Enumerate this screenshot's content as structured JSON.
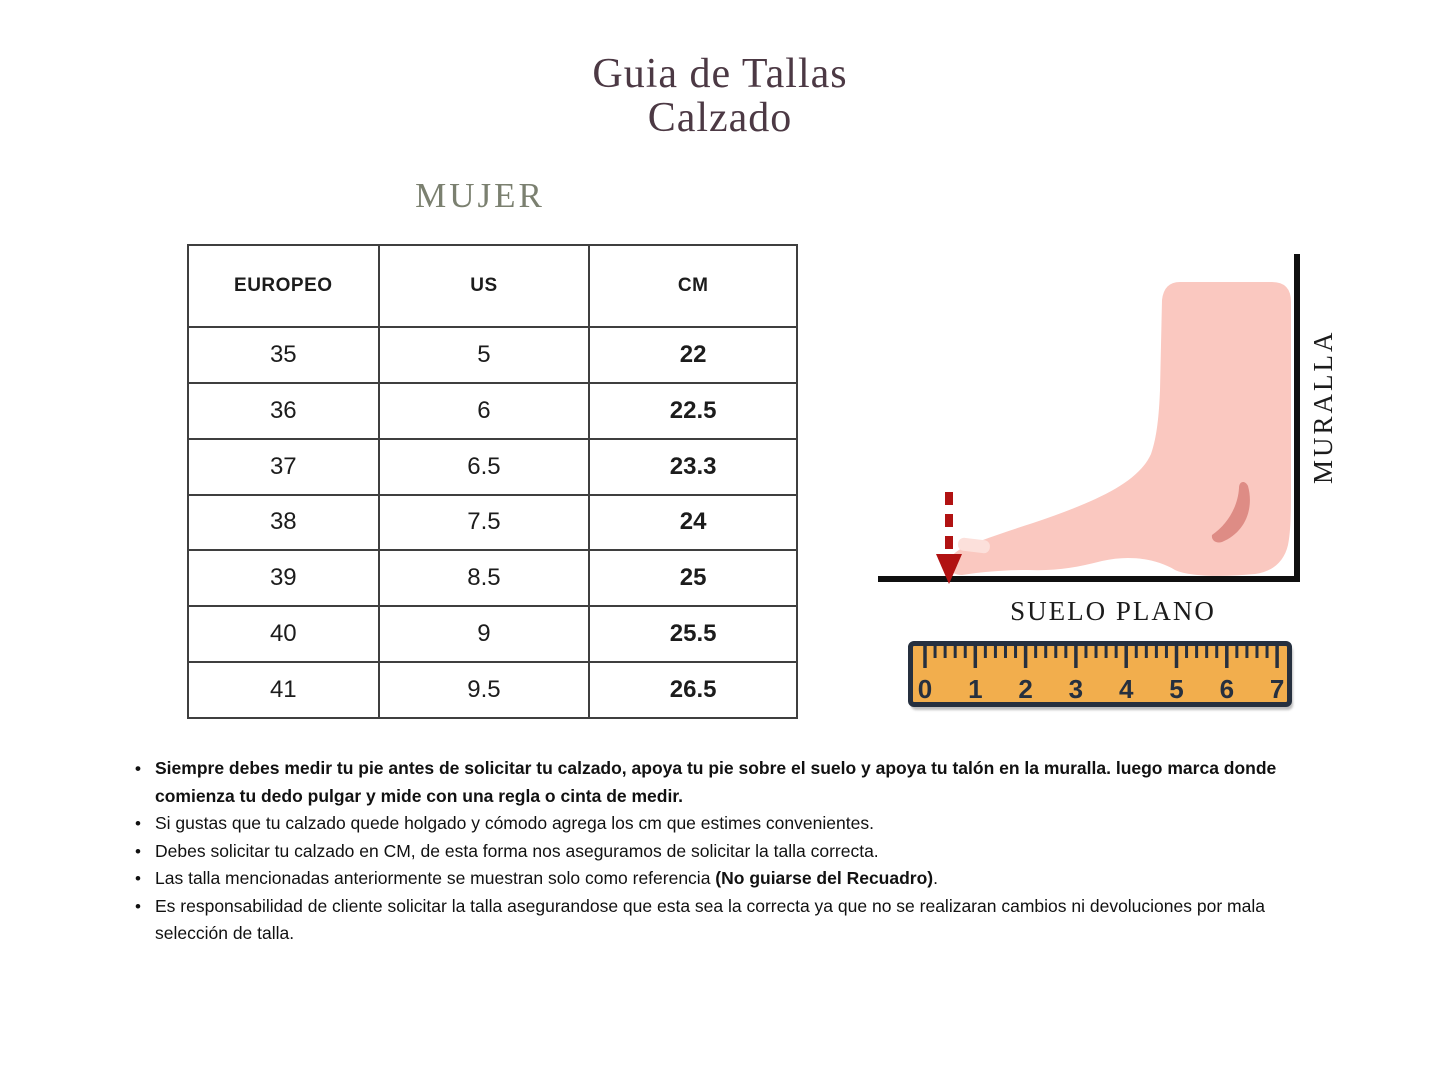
{
  "title": {
    "line1": "Guia de Tallas",
    "line2": "Calzado"
  },
  "section_heading": "MUJER",
  "size_table": {
    "headers": [
      "EUROPEO",
      "US",
      "CM"
    ],
    "rows": [
      [
        "35",
        "5",
        "22"
      ],
      [
        "36",
        "6",
        "22.5"
      ],
      [
        "37",
        "6.5",
        "23.3"
      ],
      [
        "38",
        "7.5",
        "24"
      ],
      [
        "39",
        "8.5",
        "25"
      ],
      [
        "40",
        "9",
        "25.5"
      ],
      [
        "41",
        "9.5",
        "26.5"
      ]
    ]
  },
  "diagram": {
    "wall_label": "MURALLA",
    "floor_label": "SUELO PLANO",
    "ruler": {
      "numbers": [
        "0",
        "1",
        "2",
        "3",
        "4",
        "5",
        "6",
        "7"
      ]
    }
  },
  "notes": {
    "items": [
      {
        "text": "Siempre debes medir tu pie antes de solicitar tu calzado, apoya tu pie sobre el suelo y apoya tu talón en la muralla. luego marca donde comienza tu dedo pulgar y mide con una regla o cinta de medir."
      },
      {
        "text": "Si gustas que tu calzado quede holgado y cómodo agrega los cm que estimes convenientes."
      },
      {
        "text": "Debes solicitar tu calzado en CM, de esta forma nos aseguramos de solicitar la talla correcta."
      },
      {
        "prefix": "Las talla mencionadas anteriormente se muestran solo como referencia ",
        "bold_part": "(No guiarse del Recuadro)",
        "suffix": "."
      },
      {
        "text": "Es responsabilidad de cliente solicitar la talla  asegurandose que esta sea la correcta ya que no se realizaran cambios ni devoluciones por mala selección de talla."
      }
    ]
  },
  "colors": {
    "title_text": "#4C3944",
    "heading_text": "#7B8070",
    "table_border": "#3F3F3F",
    "foot_skin": "#FAC8C0",
    "foot_nail": "#FCE0DB",
    "heel_accent": "#DE8C85",
    "arrow_red": "#B11212",
    "line_black": "#101010",
    "ruler_orange": "#F2AE4D",
    "ruler_dark": "#26303F",
    "body_text": "#111111"
  }
}
